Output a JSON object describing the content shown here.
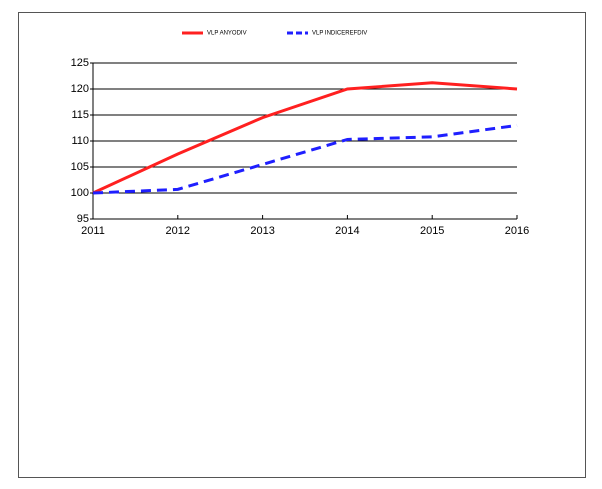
{
  "chart_data": {
    "type": "line",
    "categories": [
      "2011",
      "2012",
      "2013",
      "2014",
      "2015",
      "2016"
    ],
    "series": [
      {
        "name": "VLP ANYODIV",
        "color": "#ff2020",
        "dash": false,
        "values": [
          100,
          107.5,
          114.5,
          120,
          121.2,
          120
        ]
      },
      {
        "name": "VLP INDICEREFDIV",
        "color": "#1f1fff",
        "dash": true,
        "values": [
          100,
          100.7,
          105.5,
          110.3,
          110.8,
          113
        ]
      }
    ],
    "ylim": [
      95,
      125
    ],
    "yticks": [
      95,
      100,
      105,
      110,
      115,
      120,
      125
    ],
    "grid": true
  }
}
